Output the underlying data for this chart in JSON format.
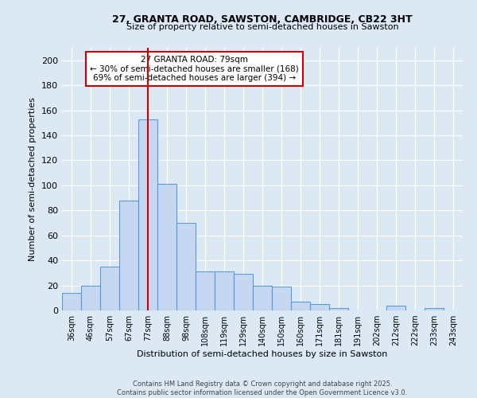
{
  "title1": "27, GRANTA ROAD, SAWSTON, CAMBRIDGE, CB22 3HT",
  "title2": "Size of property relative to semi-detached houses in Sawston",
  "categories": [
    "36sqm",
    "46sqm",
    "57sqm",
    "67sqm",
    "77sqm",
    "88sqm",
    "98sqm",
    "108sqm",
    "119sqm",
    "129sqm",
    "140sqm",
    "150sqm",
    "160sqm",
    "171sqm",
    "181sqm",
    "191sqm",
    "202sqm",
    "212sqm",
    "222sqm",
    "233sqm",
    "243sqm"
  ],
  "values": [
    14,
    20,
    35,
    88,
    153,
    101,
    70,
    31,
    31,
    29,
    20,
    19,
    7,
    5,
    2,
    0,
    0,
    4,
    0,
    2,
    0
  ],
  "bar_color": "#c5d8f0",
  "bar_edge_color": "#5b9bd5",
  "background_color": "#dce9f5",
  "grid_color": "#ffffff",
  "xlabel": "Distribution of semi-detached houses by size in Sawston",
  "ylabel": "Number of semi-detached properties",
  "ylim": [
    0,
    210
  ],
  "yticks": [
    0,
    20,
    40,
    60,
    80,
    100,
    120,
    140,
    160,
    180,
    200
  ],
  "vline_x": 4,
  "vline_color": "#cc0000",
  "annotation_title": "27 GRANTA ROAD: 79sqm",
  "annotation_line1": "← 30% of semi-detached houses are smaller (168)",
  "annotation_line2": "69% of semi-detached houses are larger (394) →",
  "annotation_box_color": "#ffffff",
  "annotation_box_edge": "#cc0000",
  "footer1": "Contains HM Land Registry data © Crown copyright and database right 2025.",
  "footer2": "Contains public sector information licensed under the Open Government Licence v3.0."
}
